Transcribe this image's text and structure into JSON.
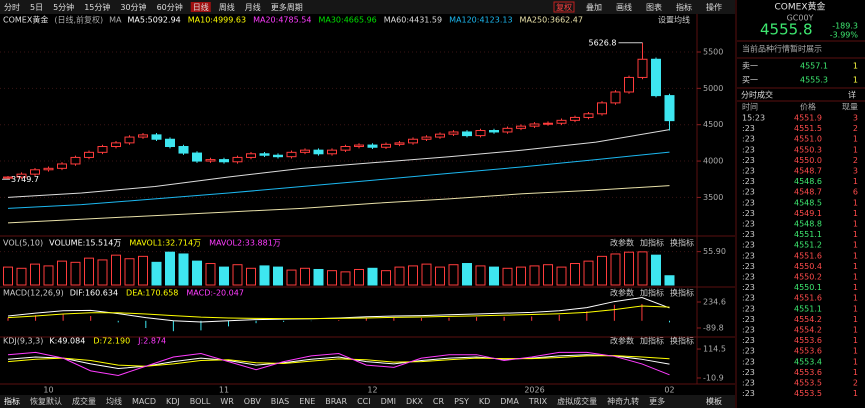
{
  "toolbar": {
    "periods": [
      "分时",
      "5日",
      "5分钟",
      "15分钟",
      "30分钟",
      "60分钟",
      "日线",
      "周线",
      "月线",
      "更多周期"
    ],
    "active": "日线",
    "tools": [
      "复权",
      "叠加",
      "画线",
      "图表",
      "指标",
      "操作"
    ]
  },
  "main": {
    "title": "COMEX黄金",
    "subtitle": "(日线,前复权)",
    "ma_label": "MA",
    "settings": "设置均线",
    "ma": [
      {
        "text": "MA5:5092.94",
        "color": "#ffffff"
      },
      {
        "text": "MA10:4999.63",
        "color": "#ffff00"
      },
      {
        "text": "MA20:4785.54",
        "color": "#ff3cff"
      },
      {
        "text": "MA30:4665.96",
        "color": "#00e000"
      },
      {
        "text": "MA60:4431.59",
        "color": "#dcdcdc"
      },
      {
        "text": "MA120:4123.13",
        "color": "#1cb8f0"
      },
      {
        "text": "MA250:3662.47",
        "color": "#e8e0a8"
      }
    ],
    "high": 5626.8,
    "low": 3749.7,
    "ylim": [
      2983,
      5940
    ],
    "yticks": [
      3500,
      4000,
      4500,
      5000,
      5500
    ],
    "up_color": "#ff3c3c",
    "down_color": "#3ee6f0",
    "categories": [
      null,
      null,
      null,
      "10",
      null,
      null,
      null,
      null,
      null,
      null,
      null,
      null,
      null,
      null,
      null,
      null,
      "11",
      null,
      null,
      null,
      null,
      null,
      null,
      null,
      null,
      null,
      null,
      "12",
      null,
      null,
      null,
      null,
      null,
      null,
      null,
      null,
      null,
      null,
      null,
      "2026",
      null,
      null,
      null,
      null,
      null,
      null,
      null,
      null,
      null,
      "02"
    ],
    "candles": [
      [
        3765,
        3795,
        3749.7,
        3780
      ],
      [
        3780,
        3845,
        3755,
        3820
      ],
      [
        3820,
        3905,
        3795,
        3880
      ],
      [
        3880,
        3925,
        3855,
        3900
      ],
      [
        3900,
        3985,
        3875,
        3960
      ],
      [
        3960,
        4075,
        3935,
        4050
      ],
      [
        4050,
        4145,
        4025,
        4120
      ],
      [
        4120,
        4225,
        4095,
        4200
      ],
      [
        4200,
        4275,
        4175,
        4250
      ],
      [
        4250,
        4355,
        4225,
        4330
      ],
      [
        4330,
        4385,
        4305,
        4360
      ],
      [
        4360,
        4385,
        4275,
        4300
      ],
      [
        4300,
        4325,
        4175,
        4200
      ],
      [
        4200,
        4225,
        4085,
        4110
      ],
      [
        4110,
        4135,
        3975,
        4000
      ],
      [
        4000,
        4045,
        3975,
        4020
      ],
      [
        4020,
        4045,
        3965,
        3990
      ],
      [
        3990,
        4075,
        3965,
        4050
      ],
      [
        4050,
        4125,
        4025,
        4100
      ],
      [
        4100,
        4125,
        4055,
        4080
      ],
      [
        4080,
        4105,
        4035,
        4060
      ],
      [
        4060,
        4145,
        4035,
        4120
      ],
      [
        4120,
        4175,
        4095,
        4150
      ],
      [
        4150,
        4175,
        4075,
        4100
      ],
      [
        4100,
        4175,
        4075,
        4150
      ],
      [
        4150,
        4225,
        4125,
        4200
      ],
      [
        4200,
        4245,
        4175,
        4220
      ],
      [
        4220,
        4245,
        4165,
        4190
      ],
      [
        4190,
        4255,
        4165,
        4230
      ],
      [
        4230,
        4275,
        4205,
        4250
      ],
      [
        4250,
        4325,
        4225,
        4300
      ],
      [
        4300,
        4355,
        4275,
        4330
      ],
      [
        4330,
        4395,
        4305,
        4370
      ],
      [
        4370,
        4425,
        4345,
        4400
      ],
      [
        4400,
        4425,
        4325,
        4350
      ],
      [
        4350,
        4445,
        4325,
        4420
      ],
      [
        4420,
        4445,
        4375,
        4400
      ],
      [
        4400,
        4475,
        4375,
        4450
      ],
      [
        4450,
        4505,
        4425,
        4480
      ],
      [
        4480,
        4535,
        4455,
        4510
      ],
      [
        4510,
        4545,
        4485,
        4520
      ],
      [
        4520,
        4585,
        4495,
        4560
      ],
      [
        4560,
        4625,
        4535,
        4600
      ],
      [
        4600,
        4675,
        4575,
        4650
      ],
      [
        4650,
        4825,
        4625,
        4800
      ],
      [
        4800,
        4975,
        4775,
        4950
      ],
      [
        4950,
        5175,
        4925,
        5150
      ],
      [
        5150,
        5626.8,
        5125,
        5400
      ],
      [
        5400,
        5425,
        4875,
        4900
      ],
      [
        4900,
        4925,
        4420,
        4556
      ]
    ],
    "lines": [
      {
        "color": "#dcdcdc",
        "values": [
          3500,
          3560,
          3650,
          3780,
          3900,
          3980,
          4060,
          4150,
          4260,
          4431.59
        ]
      },
      {
        "color": "#1cb8f0",
        "values": [
          3350,
          3400,
          3480,
          3560,
          3650,
          3740,
          3830,
          3920,
          4020,
          4123.13
        ]
      },
      {
        "color": "#e8e0a8",
        "values": [
          3150,
          3200,
          3250,
          3300,
          3350,
          3420,
          3480,
          3550,
          3600,
          3662.47
        ]
      }
    ]
  },
  "panel_buttons": [
    "改参数",
    "加指标",
    "换指标"
  ],
  "vol": {
    "title": "VOL(5,10)",
    "items": [
      {
        "text": "VOLUME:15.514万",
        "color": "#ffffff"
      },
      {
        "text": "MAVOL1:32.714万",
        "color": "#ffff00"
      },
      {
        "text": "MAVOL2:33.881万",
        "color": "#ff3cff"
      }
    ],
    "ylim": [
      0,
      62
    ],
    "yticks": [
      {
        "value": 55.9,
        "label": "55.90"
      }
    ],
    "values": [
      30,
      28,
      35,
      32,
      40,
      38,
      45,
      42,
      50,
      44,
      48,
      38,
      55,
      52,
      40,
      36,
      30,
      34,
      28,
      32,
      30,
      25,
      28,
      26,
      24,
      22,
      26,
      28,
      24,
      30,
      32,
      35,
      30,
      34,
      36,
      32,
      30,
      28,
      30,
      32,
      34,
      30,
      36,
      40,
      48,
      52,
      55,
      55.5,
      50,
      15.514
    ]
  },
  "macd": {
    "title": "MACD(12,26,9)",
    "items": [
      {
        "text": "DIF:160.634",
        "color": "#ffffff"
      },
      {
        "text": "DEA:170.658",
        "color": "#ffff00"
      },
      {
        "text": "MACD:-20.047",
        "color": "#ff3cff"
      }
    ],
    "ylim": [
      -190,
      397
    ],
    "yticks": [
      234.6,
      -89.8
    ],
    "dif": [
      60,
      95,
      125,
      130,
      90,
      40,
      0,
      -15,
      0,
      15,
      20,
      25,
      35,
      50,
      60,
      65,
      75,
      85,
      95,
      105,
      125,
      165,
      240,
      290,
      160.634
    ],
    "dea": [
      40,
      60,
      85,
      100,
      100,
      85,
      65,
      45,
      35,
      30,
      27,
      27,
      30,
      35,
      42,
      48,
      55,
      62,
      70,
      78,
      88,
      105,
      140,
      185,
      170.658
    ],
    "macd": [
      40,
      70,
      80,
      60,
      -20,
      -90,
      -130,
      -120,
      -70,
      -30,
      -14,
      -4,
      10,
      30,
      36,
      34,
      40,
      46,
      50,
      54,
      74,
      120,
      200,
      210,
      -20.047
    ]
  },
  "kdj": {
    "title": "KDJ(9,3,3)",
    "items": [
      {
        "text": "K:49.084",
        "color": "#ffffff"
      },
      {
        "text": "D:72.190",
        "color": "#ffff00"
      },
      {
        "text": "J:2.874",
        "color": "#ff3cff"
      }
    ],
    "ylim": [
      -37,
      158
    ],
    "yticks": [
      114.5,
      -10.9
    ],
    "k": [
      70,
      80,
      75,
      50,
      30,
      40,
      60,
      75,
      65,
      45,
      55,
      70,
      80,
      60,
      50,
      65,
      75,
      80,
      70,
      75,
      85,
      90,
      85,
      70,
      49.084
    ],
    "d": [
      60,
      70,
      75,
      65,
      45,
      40,
      50,
      65,
      68,
      55,
      52,
      62,
      72,
      68,
      58,
      60,
      68,
      75,
      73,
      73,
      78,
      85,
      86,
      80,
      72.19
    ],
    "j": [
      90,
      100,
      75,
      20,
      0,
      40,
      80,
      95,
      60,
      25,
      60,
      85,
      95,
      45,
      35,
      75,
      90,
      90,
      65,
      80,
      100,
      100,
      83,
      50,
      2.874
    ]
  },
  "tabs": [
    "指标",
    "恢复默认",
    "成交量",
    "均线",
    "MACD",
    "KDJ",
    "BOLL",
    "WR",
    "OBV",
    "BIAS",
    "ENE",
    "BRAR",
    "CCI",
    "DMI",
    "DKX",
    "CR",
    "PSY",
    "KD",
    "DMA",
    "TRIX",
    "虚拟成交量",
    "神奇九转",
    "更多"
  ],
  "template": "模板",
  "quote": {
    "name": "COMEX黄金",
    "code": "GC00Y",
    "price": "4555.8",
    "change": "-189.3",
    "change_pct": "-3.99%",
    "notice": "当前品种行情暂时展示",
    "book": [
      {
        "label": "卖一",
        "price": "4557.1",
        "qty": "1"
      },
      {
        "label": "买一",
        "price": "4555.3",
        "qty": "1"
      }
    ],
    "trades_title": "分时成交",
    "detail": "详",
    "headers": [
      "时间",
      "价格",
      "现量"
    ],
    "trades": [
      [
        "15:23",
        "4551.9",
        "3"
      ],
      [
        ":23",
        "4551.5",
        "2"
      ],
      [
        ":23",
        "4551.0",
        "1"
      ],
      [
        ":23",
        "4550.3",
        "1"
      ],
      [
        ":23",
        "4550.0",
        "2"
      ],
      [
        ":23",
        "4548.7",
        "3"
      ],
      [
        ":23",
        "4548.6",
        "1"
      ],
      [
        ":23",
        "4548.7",
        "6"
      ],
      [
        ":23",
        "4548.5",
        "1"
      ],
      [
        ":23",
        "4549.1",
        "1"
      ],
      [
        ":23",
        "4548.8",
        "1"
      ],
      [
        ":23",
        "4551.1",
        "1"
      ],
      [
        ":23",
        "4551.2",
        "1"
      ],
      [
        ":23",
        "4551.6",
        "1"
      ],
      [
        ":23",
        "4550.4",
        "1"
      ],
      [
        ":23",
        "4550.2",
        "1"
      ],
      [
        ":23",
        "4550.1",
        "1"
      ],
      [
        ":23",
        "4551.6",
        "1"
      ],
      [
        ":23",
        "4551.1",
        "1"
      ],
      [
        ":23",
        "4554.2",
        "1"
      ],
      [
        ":23",
        "4554.2",
        "1"
      ],
      [
        ":23",
        "4553.6",
        "1"
      ],
      [
        ":23",
        "4553.6",
        "1"
      ],
      [
        ":23",
        "4553.4",
        "1"
      ],
      [
        ":23",
        "4553.6",
        "1"
      ],
      [
        ":23",
        "4553.5",
        "2"
      ],
      [
        ":23",
        "4553.5",
        "1"
      ]
    ]
  }
}
